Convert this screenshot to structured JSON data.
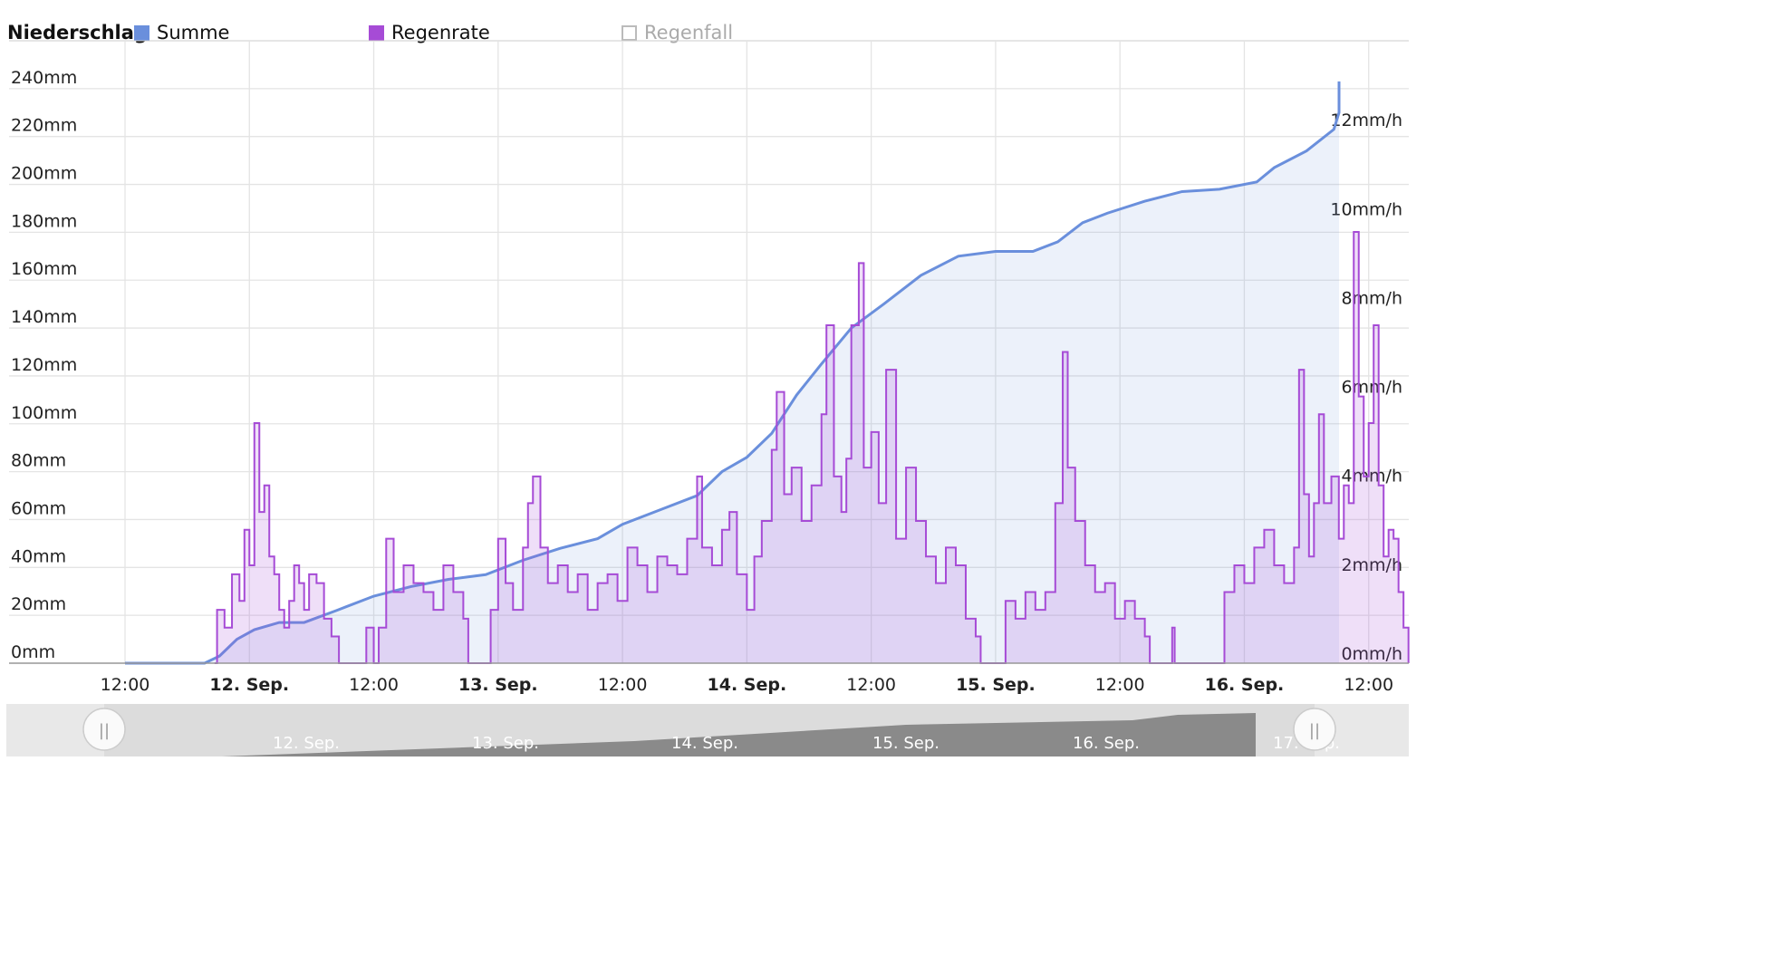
{
  "legend": {
    "title": "Niederschlag",
    "items": [
      {
        "label": "Summe",
        "color": "#6a8fdc",
        "active": true
      },
      {
        "label": "Regenrate",
        "color": "#a64bd6",
        "active": true
      },
      {
        "label": "Regenfall",
        "color": "#bbbbbb",
        "active": false
      }
    ]
  },
  "chart_data": {
    "type": "line",
    "title": "Niederschlag",
    "y_left": {
      "ticks": [
        "0mm",
        "20mm",
        "40mm",
        "60mm",
        "80mm",
        "100mm",
        "120mm",
        "140mm",
        "160mm",
        "180mm",
        "200mm",
        "220mm",
        "240mm"
      ],
      "range": [
        0,
        260
      ]
    },
    "y_right": {
      "ticks": [
        "0mm/h",
        "2mm/h",
        "4mm/h",
        "6mm/h",
        "8mm/h",
        "10mm/h",
        "12mm/h"
      ],
      "range": [
        0,
        14
      ]
    },
    "x_ticks": [
      {
        "label": "12:00",
        "bold": false,
        "t": 0.0
      },
      {
        "label": "12. Sep.",
        "bold": true,
        "t": 0.5
      },
      {
        "label": "12:00",
        "bold": false,
        "t": 1.0
      },
      {
        "label": "13. Sep.",
        "bold": true,
        "t": 1.5
      },
      {
        "label": "12:00",
        "bold": false,
        "t": 2.0
      },
      {
        "label": "14. Sep.",
        "bold": true,
        "t": 2.5
      },
      {
        "label": "12:00",
        "bold": false,
        "t": 3.0
      },
      {
        "label": "15. Sep.",
        "bold": true,
        "t": 3.5
      },
      {
        "label": "12:00",
        "bold": false,
        "t": 4.0
      },
      {
        "label": "16. Sep.",
        "bold": true,
        "t": 4.5
      },
      {
        "label": "12:00",
        "bold": false,
        "t": 5.0
      },
      {
        "label": "17. Sep.",
        "bold": true,
        "t": 5.5
      }
    ],
    "series": [
      {
        "name": "Summe",
        "axis": "left",
        "color": "#6a8fdc",
        "points": [
          [
            0.0,
            0
          ],
          [
            0.32,
            0
          ],
          [
            0.38,
            3
          ],
          [
            0.45,
            10
          ],
          [
            0.52,
            14
          ],
          [
            0.62,
            17
          ],
          [
            0.72,
            17
          ],
          [
            0.85,
            22
          ],
          [
            1.0,
            28
          ],
          [
            1.15,
            32
          ],
          [
            1.3,
            35
          ],
          [
            1.45,
            37
          ],
          [
            1.6,
            43
          ],
          [
            1.75,
            48
          ],
          [
            1.9,
            52
          ],
          [
            2.0,
            58
          ],
          [
            2.15,
            64
          ],
          [
            2.3,
            70
          ],
          [
            2.4,
            80
          ],
          [
            2.5,
            86
          ],
          [
            2.6,
            96
          ],
          [
            2.7,
            112
          ],
          [
            2.8,
            125
          ],
          [
            2.92,
            140
          ],
          [
            3.05,
            150
          ],
          [
            3.2,
            162
          ],
          [
            3.35,
            170
          ],
          [
            3.5,
            172
          ],
          [
            3.65,
            172
          ],
          [
            3.75,
            176
          ],
          [
            3.85,
            184
          ],
          [
            3.95,
            188
          ],
          [
            4.1,
            193
          ],
          [
            4.25,
            197
          ],
          [
            4.4,
            198
          ],
          [
            4.55,
            201
          ],
          [
            4.62,
            207
          ],
          [
            4.75,
            214
          ],
          [
            4.86,
            223
          ],
          [
            4.97,
            230
          ],
          [
            5.05,
            236
          ],
          [
            5.15,
            242
          ],
          [
            5.25,
            243
          ],
          [
            5.35,
            243
          ],
          [
            5.45,
            243
          ]
        ]
      },
      {
        "name": "Regenrate",
        "axis": "right",
        "color": "#a64bd6",
        "points": [
          [
            0.36,
            0
          ],
          [
            0.37,
            1.2
          ],
          [
            0.4,
            0.8
          ],
          [
            0.43,
            2.0
          ],
          [
            0.46,
            1.4
          ],
          [
            0.48,
            3.0
          ],
          [
            0.5,
            2.2
          ],
          [
            0.52,
            5.4
          ],
          [
            0.54,
            3.4
          ],
          [
            0.56,
            4.0
          ],
          [
            0.58,
            2.4
          ],
          [
            0.6,
            2.0
          ],
          [
            0.62,
            1.2
          ],
          [
            0.64,
            0.8
          ],
          [
            0.66,
            1.4
          ],
          [
            0.68,
            2.2
          ],
          [
            0.7,
            1.8
          ],
          [
            0.72,
            1.2
          ],
          [
            0.74,
            2.0
          ],
          [
            0.77,
            1.8
          ],
          [
            0.8,
            1.0
          ],
          [
            0.83,
            0.6
          ],
          [
            0.86,
            0
          ],
          [
            0.95,
            0
          ],
          [
            0.97,
            0.8
          ],
          [
            1.0,
            0
          ],
          [
            1.02,
            0.8
          ],
          [
            1.05,
            2.8
          ],
          [
            1.08,
            1.6
          ],
          [
            1.12,
            2.2
          ],
          [
            1.16,
            1.8
          ],
          [
            1.2,
            1.6
          ],
          [
            1.24,
            1.2
          ],
          [
            1.28,
            2.2
          ],
          [
            1.32,
            1.6
          ],
          [
            1.36,
            1.0
          ],
          [
            1.38,
            0
          ],
          [
            1.45,
            0
          ],
          [
            1.47,
            1.2
          ],
          [
            1.5,
            2.8
          ],
          [
            1.53,
            1.8
          ],
          [
            1.56,
            1.2
          ],
          [
            1.6,
            2.6
          ],
          [
            1.62,
            3.6
          ],
          [
            1.64,
            4.2
          ],
          [
            1.67,
            2.6
          ],
          [
            1.7,
            1.8
          ],
          [
            1.74,
            2.2
          ],
          [
            1.78,
            1.6
          ],
          [
            1.82,
            2.0
          ],
          [
            1.86,
            1.2
          ],
          [
            1.9,
            1.8
          ],
          [
            1.94,
            2.0
          ],
          [
            1.98,
            1.4
          ],
          [
            2.02,
            2.6
          ],
          [
            2.06,
            2.2
          ],
          [
            2.1,
            1.6
          ],
          [
            2.14,
            2.4
          ],
          [
            2.18,
            2.2
          ],
          [
            2.22,
            2.0
          ],
          [
            2.26,
            2.8
          ],
          [
            2.3,
            4.2
          ],
          [
            2.32,
            2.6
          ],
          [
            2.36,
            2.2
          ],
          [
            2.4,
            3.0
          ],
          [
            2.43,
            3.4
          ],
          [
            2.46,
            2.0
          ],
          [
            2.5,
            1.2
          ],
          [
            2.53,
            2.4
          ],
          [
            2.56,
            3.2
          ],
          [
            2.6,
            4.8
          ],
          [
            2.62,
            6.1
          ],
          [
            2.65,
            3.8
          ],
          [
            2.68,
            4.4
          ],
          [
            2.72,
            3.2
          ],
          [
            2.76,
            4.0
          ],
          [
            2.8,
            5.6
          ],
          [
            2.82,
            7.6
          ],
          [
            2.85,
            4.2
          ],
          [
            2.88,
            3.4
          ],
          [
            2.9,
            4.6
          ],
          [
            2.92,
            7.6
          ],
          [
            2.95,
            9.0
          ],
          [
            2.97,
            4.4
          ],
          [
            3.0,
            5.2
          ],
          [
            3.03,
            3.6
          ],
          [
            3.06,
            6.6
          ],
          [
            3.1,
            2.8
          ],
          [
            3.14,
            4.4
          ],
          [
            3.18,
            3.2
          ],
          [
            3.22,
            2.4
          ],
          [
            3.26,
            1.8
          ],
          [
            3.3,
            2.6
          ],
          [
            3.34,
            2.2
          ],
          [
            3.38,
            1.0
          ],
          [
            3.42,
            0.6
          ],
          [
            3.44,
            0
          ],
          [
            3.52,
            0
          ],
          [
            3.54,
            1.4
          ],
          [
            3.58,
            1.0
          ],
          [
            3.62,
            1.6
          ],
          [
            3.66,
            1.2
          ],
          [
            3.7,
            1.6
          ],
          [
            3.74,
            3.6
          ],
          [
            3.77,
            7.0
          ],
          [
            3.79,
            4.4
          ],
          [
            3.82,
            3.2
          ],
          [
            3.86,
            2.2
          ],
          [
            3.9,
            1.6
          ],
          [
            3.94,
            1.8
          ],
          [
            3.98,
            1.0
          ],
          [
            4.02,
            1.4
          ],
          [
            4.06,
            1.0
          ],
          [
            4.1,
            0.6
          ],
          [
            4.12,
            0
          ],
          [
            4.2,
            0
          ],
          [
            4.21,
            0.8
          ],
          [
            4.22,
            0
          ],
          [
            4.4,
            0
          ],
          [
            4.42,
            1.6
          ],
          [
            4.46,
            2.2
          ],
          [
            4.5,
            1.8
          ],
          [
            4.54,
            2.6
          ],
          [
            4.58,
            3.0
          ],
          [
            4.62,
            2.2
          ],
          [
            4.66,
            1.8
          ],
          [
            4.7,
            2.6
          ],
          [
            4.72,
            6.6
          ],
          [
            4.74,
            3.8
          ],
          [
            4.76,
            2.4
          ],
          [
            4.78,
            3.6
          ],
          [
            4.8,
            5.6
          ],
          [
            4.82,
            3.6
          ],
          [
            4.85,
            4.2
          ],
          [
            4.88,
            2.8
          ],
          [
            4.9,
            4.0
          ],
          [
            4.92,
            3.6
          ],
          [
            4.94,
            9.7
          ],
          [
            4.96,
            6.0
          ],
          [
            4.98,
            4.2
          ],
          [
            5.0,
            5.4
          ],
          [
            5.02,
            7.6
          ],
          [
            5.04,
            4.0
          ],
          [
            5.06,
            2.4
          ],
          [
            5.08,
            3.0
          ],
          [
            5.1,
            2.8
          ],
          [
            5.12,
            1.6
          ],
          [
            5.14,
            0.8
          ],
          [
            5.16,
            0
          ]
        ]
      }
    ]
  },
  "navigator": {
    "labels": [
      "12. Sep.",
      "13. Sep.",
      "14. Sep.",
      "15. Sep.",
      "16. Sep.",
      "17. Sep."
    ],
    "left_handle": "||",
    "right_handle": "||"
  }
}
